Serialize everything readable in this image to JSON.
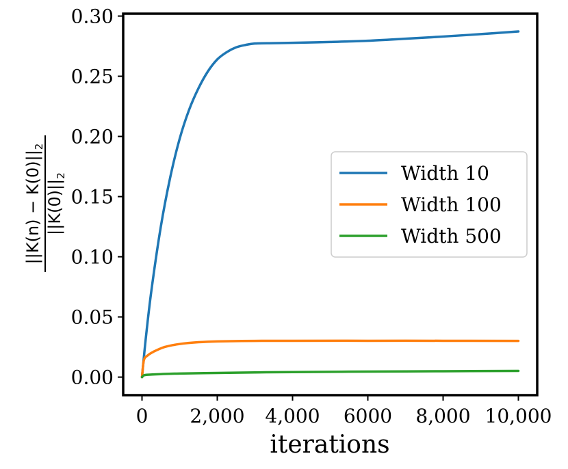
{
  "chart_data": {
    "type": "line",
    "xlabel": "iterations",
    "ylabel": {
      "numerator": "||K(n) − K(0)||",
      "denominator": "||K(0)||",
      "subscript": "2"
    },
    "xlim": [
      -500,
      10500
    ],
    "ylim": [
      -0.015,
      0.302
    ],
    "x_ticks": [
      {
        "value": 0,
        "label": "0"
      },
      {
        "value": 2000,
        "label": "2,000"
      },
      {
        "value": 4000,
        "label": "4,000"
      },
      {
        "value": 6000,
        "label": "6000"
      },
      {
        "value": 8000,
        "label": "8,000"
      },
      {
        "value": 10000,
        "label": "10,000"
      }
    ],
    "y_ticks": [
      {
        "value": 0.0,
        "label": "0.00"
      },
      {
        "value": 0.05,
        "label": "0.05"
      },
      {
        "value": 0.1,
        "label": "0.10"
      },
      {
        "value": 0.15,
        "label": "0.15"
      },
      {
        "value": 0.2,
        "label": "0.20"
      },
      {
        "value": 0.25,
        "label": "0.25"
      },
      {
        "value": 0.3,
        "label": "0.30"
      }
    ],
    "grid": false,
    "legend_position": "center-right",
    "series": [
      {
        "name": "Width 10",
        "color": "#1f77b4",
        "points": [
          [
            0,
            0.0
          ],
          [
            100,
            0.032
          ],
          [
            250,
            0.072
          ],
          [
            500,
            0.125
          ],
          [
            750,
            0.166
          ],
          [
            1000,
            0.198
          ],
          [
            1250,
            0.222
          ],
          [
            1500,
            0.24
          ],
          [
            1750,
            0.254
          ],
          [
            2000,
            0.264
          ],
          [
            2250,
            0.27
          ],
          [
            2500,
            0.274
          ],
          [
            2750,
            0.276
          ],
          [
            3000,
            0.2772
          ],
          [
            3500,
            0.2775
          ],
          [
            4000,
            0.2778
          ],
          [
            5000,
            0.2785
          ],
          [
            6000,
            0.2795
          ],
          [
            7000,
            0.2812
          ],
          [
            8000,
            0.283
          ],
          [
            9000,
            0.285
          ],
          [
            10000,
            0.2872
          ]
        ]
      },
      {
        "name": "Width 100",
        "color": "#ff7f0e",
        "points": [
          [
            0,
            0.0
          ],
          [
            50,
            0.014
          ],
          [
            150,
            0.018
          ],
          [
            300,
            0.021
          ],
          [
            600,
            0.025
          ],
          [
            1000,
            0.0275
          ],
          [
            1500,
            0.029
          ],
          [
            2000,
            0.0297
          ],
          [
            3000,
            0.0301
          ],
          [
            4000,
            0.0302
          ],
          [
            6000,
            0.0302
          ],
          [
            8000,
            0.0302
          ],
          [
            10000,
            0.0301
          ]
        ]
      },
      {
        "name": "Width 500",
        "color": "#2ca02c",
        "points": [
          [
            0,
            0.0
          ],
          [
            50,
            0.0015
          ],
          [
            150,
            0.002
          ],
          [
            500,
            0.0025
          ],
          [
            1000,
            0.003
          ],
          [
            2000,
            0.0035
          ],
          [
            3000,
            0.0039
          ],
          [
            4000,
            0.0042
          ],
          [
            6000,
            0.0046
          ],
          [
            8000,
            0.0049
          ],
          [
            10000,
            0.0052
          ]
        ]
      }
    ]
  }
}
